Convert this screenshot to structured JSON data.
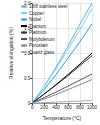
{
  "chart_data": {
    "type": "line",
    "x_label": "Temperature (°C)",
    "y_label": "Relative elongation (%)",
    "x": [
      0,
      200,
      400,
      600,
      800,
      1000
    ],
    "series": [
      {
        "name": "18/8 stainless steel",
        "color": "#4fb8e6",
        "values": [
          0,
          0.33,
          0.72,
          1.14,
          1.58,
          2.0
        ]
      },
      {
        "name": "Copper",
        "color": "#7fd0ee",
        "values": [
          0,
          0.33,
          0.69,
          1.07,
          1.47,
          1.89
        ]
      },
      {
        "name": "Nickel",
        "color": "#2aa3d8",
        "values": [
          0,
          0.27,
          0.57,
          0.9,
          1.23,
          1.58
        ]
      },
      {
        "name": "Titanium",
        "color": "#000000",
        "values": [
          0,
          0.18,
          0.37,
          0.57,
          0.78,
          1.0
        ]
      },
      {
        "name": "Platinum",
        "color": "#333333",
        "values": [
          0,
          0.18,
          0.36,
          0.55,
          0.75,
          0.95
        ]
      },
      {
        "name": "Molybdenum",
        "color": "#555555",
        "values": [
          0,
          0.11,
          0.22,
          0.34,
          0.46,
          0.58
        ]
      },
      {
        "name": "Porcelain",
        "color": "#888888",
        "values": [
          0,
          0.08,
          0.17,
          0.27,
          0.37,
          0.47
        ]
      },
      {
        "name": "Quartz glass",
        "color": "#aaaaaa",
        "values": [
          0,
          0.01,
          0.02,
          0.03,
          0.04,
          0.05
        ]
      }
    ],
    "xlim": [
      0,
      1000
    ],
    "xticks": [
      0,
      200,
      400,
      600,
      800,
      1000
    ],
    "ylim": [
      0,
      2
    ],
    "yticks": [
      0,
      {
        "value": 0.5,
        "label": "0.5"
      },
      {
        "value": 1,
        "label": "1.0"
      },
      {
        "value": 1.5,
        "label": "1.5"
      },
      {
        "value": 2,
        "label": "2.0"
      }
    ],
    "grid": true,
    "legend": "upper left"
  }
}
